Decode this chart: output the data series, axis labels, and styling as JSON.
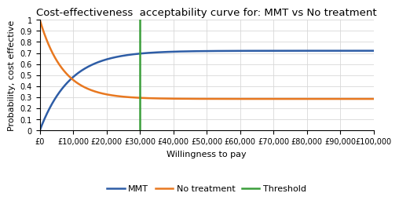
{
  "title": "Cost-effectiveness  acceptability curve for: MMT vs No treatment",
  "xlabel": "Willingness to pay",
  "ylabel": "Probability, cost effective",
  "xlim": [
    0,
    100000
  ],
  "ylim": [
    0,
    1
  ],
  "threshold": 30000,
  "mmt_color": "#2E5DA6",
  "no_treat_color": "#E87820",
  "threshold_color": "#3A9E3A",
  "legend_labels": [
    "MMT",
    "No treatment",
    "Threshold"
  ],
  "xticks": [
    0,
    10000,
    20000,
    30000,
    40000,
    50000,
    60000,
    70000,
    80000,
    90000,
    100000
  ],
  "yticks": [
    0,
    0.1,
    0.2,
    0.3,
    0.4,
    0.5,
    0.6,
    0.7,
    0.8,
    0.9,
    1
  ],
  "mmt_asymptote": 0.72,
  "mmt_scale": 5500,
  "no_treat_asymptote": 0.285,
  "no_treat_scale": 6000,
  "grid_color": "#d8d8d8",
  "title_fontsize": 9.5,
  "label_fontsize": 8,
  "tick_fontsize": 7,
  "legend_fontsize": 8,
  "linewidth": 1.8
}
